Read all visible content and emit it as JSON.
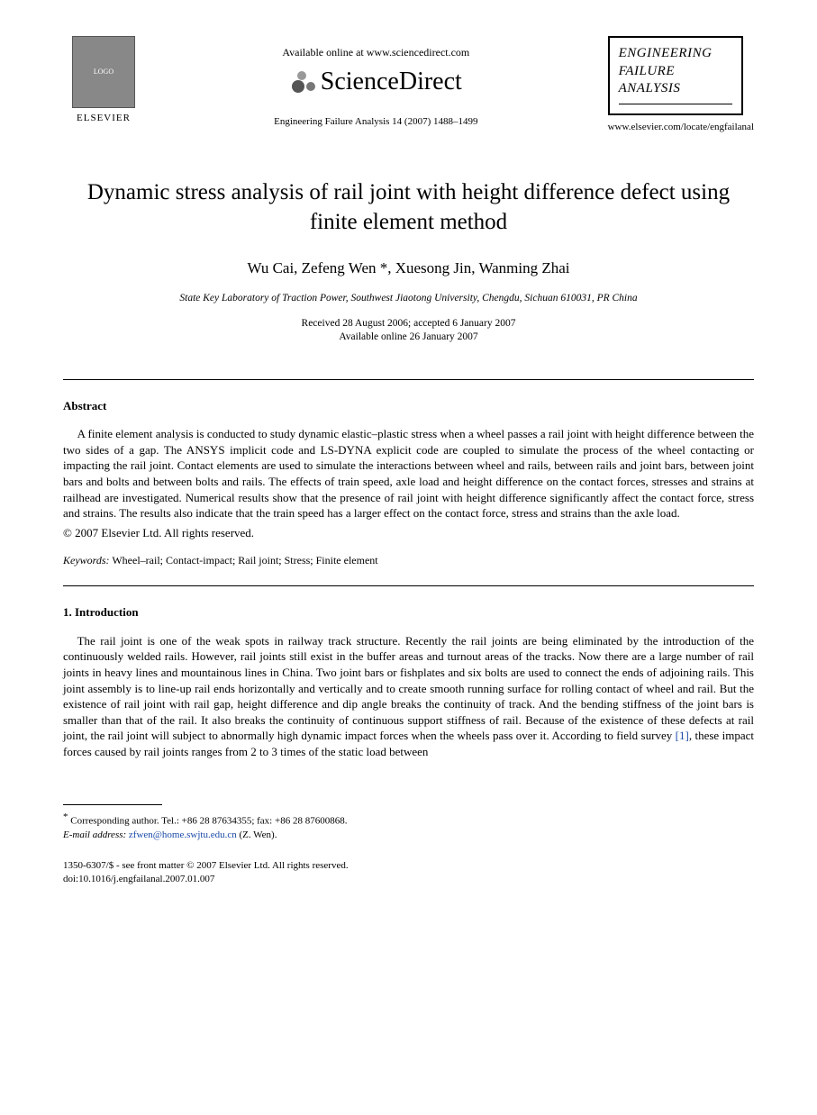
{
  "header": {
    "publisher_label": "ELSEVIER",
    "available_online": "Available online at www.sciencedirect.com",
    "sciencedirect_label": "ScienceDirect",
    "citation": "Engineering Failure Analysis 14 (2007) 1488–1499",
    "journal_box": {
      "line1": "ENGINEERING",
      "line2": "FAILURE",
      "line3": "ANALYSIS"
    },
    "journal_url": "www.elsevier.com/locate/engfailanal"
  },
  "title": "Dynamic stress analysis of rail joint with height difference defect using finite element method",
  "authors": "Wu Cai, Zefeng Wen *, Xuesong Jin, Wanming Zhai",
  "affiliation": "State Key Laboratory of Traction Power, Southwest Jiaotong University, Chengdu, Sichuan 610031, PR China",
  "dates": {
    "received_accepted": "Received 28 August 2006; accepted 6 January 2007",
    "available": "Available online 26 January 2007"
  },
  "abstract": {
    "heading": "Abstract",
    "text": "A finite element analysis is conducted to study dynamic elastic–plastic stress when a wheel passes a rail joint with height difference between the two sides of a gap. The ANSYS implicit code and LS-DYNA explicit code are coupled to simulate the process of the wheel contacting or impacting the rail joint. Contact elements are used to simulate the interactions between wheel and rails, between rails and joint bars, between joint bars and bolts and between bolts and rails. The effects of train speed, axle load and height difference on the contact forces, stresses and strains at railhead are investigated. Numerical results show that the presence of rail joint with height difference significantly affect the contact force, stress and strains. The results also indicate that the train speed has a larger effect on the contact force, stress and strains than the axle load.",
    "copyright": "© 2007 Elsevier Ltd. All rights reserved."
  },
  "keywords": {
    "label": "Keywords:",
    "text": " Wheel–rail; Contact-impact; Rail joint; Stress; Finite element"
  },
  "section1": {
    "heading": "1. Introduction",
    "paragraph": "The rail joint is one of the weak spots in railway track structure. Recently the rail joints are being eliminated by the introduction of the continuously welded rails. However, rail joints still exist in the buffer areas and turnout areas of the tracks. Now there are a large number of rail joints in heavy lines and mountainous lines in China. Two joint bars or fishplates and six bolts are used to connect the ends of adjoining rails. This joint assembly is to line-up rail ends horizontally and vertically and to create smooth running surface for rolling contact of wheel and rail. But the existence of rail joint with rail gap, height difference and dip angle breaks the continuity of track. And the bending stiffness of the joint bars is smaller than that of the rail. It also breaks the continuity of continuous support stiffness of rail. Because of the existence of these defects at rail joint, the rail joint will subject to abnormally high dynamic impact forces when the wheels pass over it. According to field survey ",
    "ref": "[1]",
    "paragraph_end": ", these impact forces caused by rail joints ranges from 2 to 3 times of the static load between"
  },
  "footnote": {
    "corresponding": "Corresponding author. Tel.: +86 28 87634355; fax: +86 28 87600868.",
    "email_label": "E-mail address:",
    "email": "zfwen@home.swjtu.edu.cn",
    "email_attrib": " (Z. Wen)."
  },
  "doi": {
    "line1": "1350-6307/$ - see front matter © 2007 Elsevier Ltd. All rights reserved.",
    "line2": "doi:10.1016/j.engfailanal.2007.01.007"
  }
}
